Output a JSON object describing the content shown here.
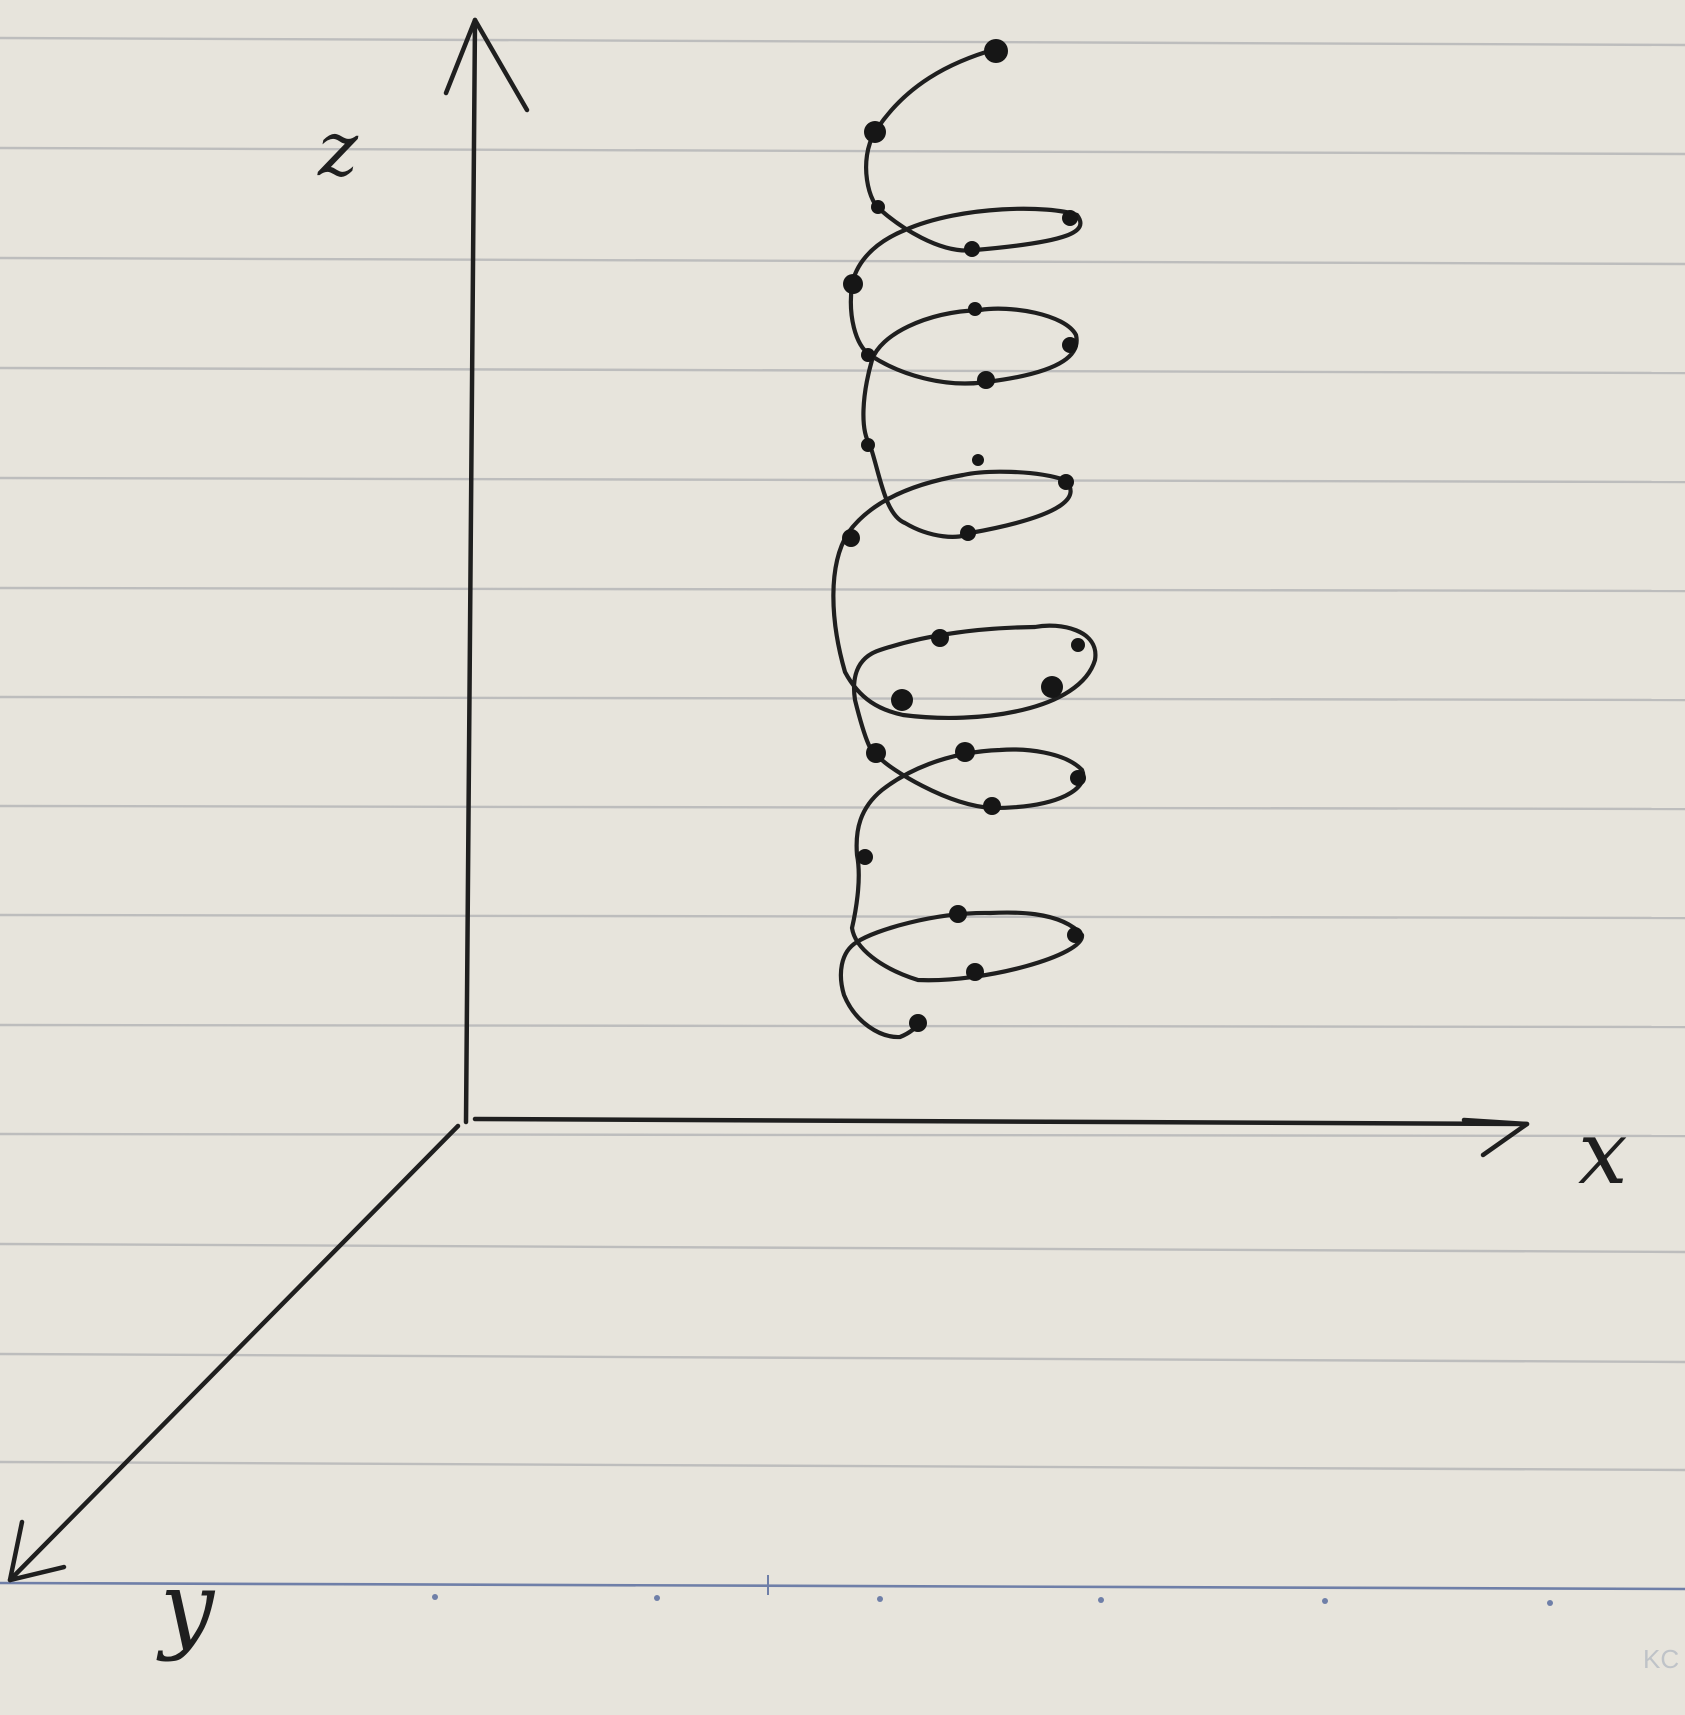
{
  "axes": {
    "z_label": "z",
    "x_label": "x",
    "y_label": "y"
  },
  "footer_mark": "KC",
  "colors": {
    "paper": "#e7e4dc",
    "ink": "#1f1f1f",
    "rule": "#bdbdbd",
    "margin_rule": "#6f7fa8"
  }
}
